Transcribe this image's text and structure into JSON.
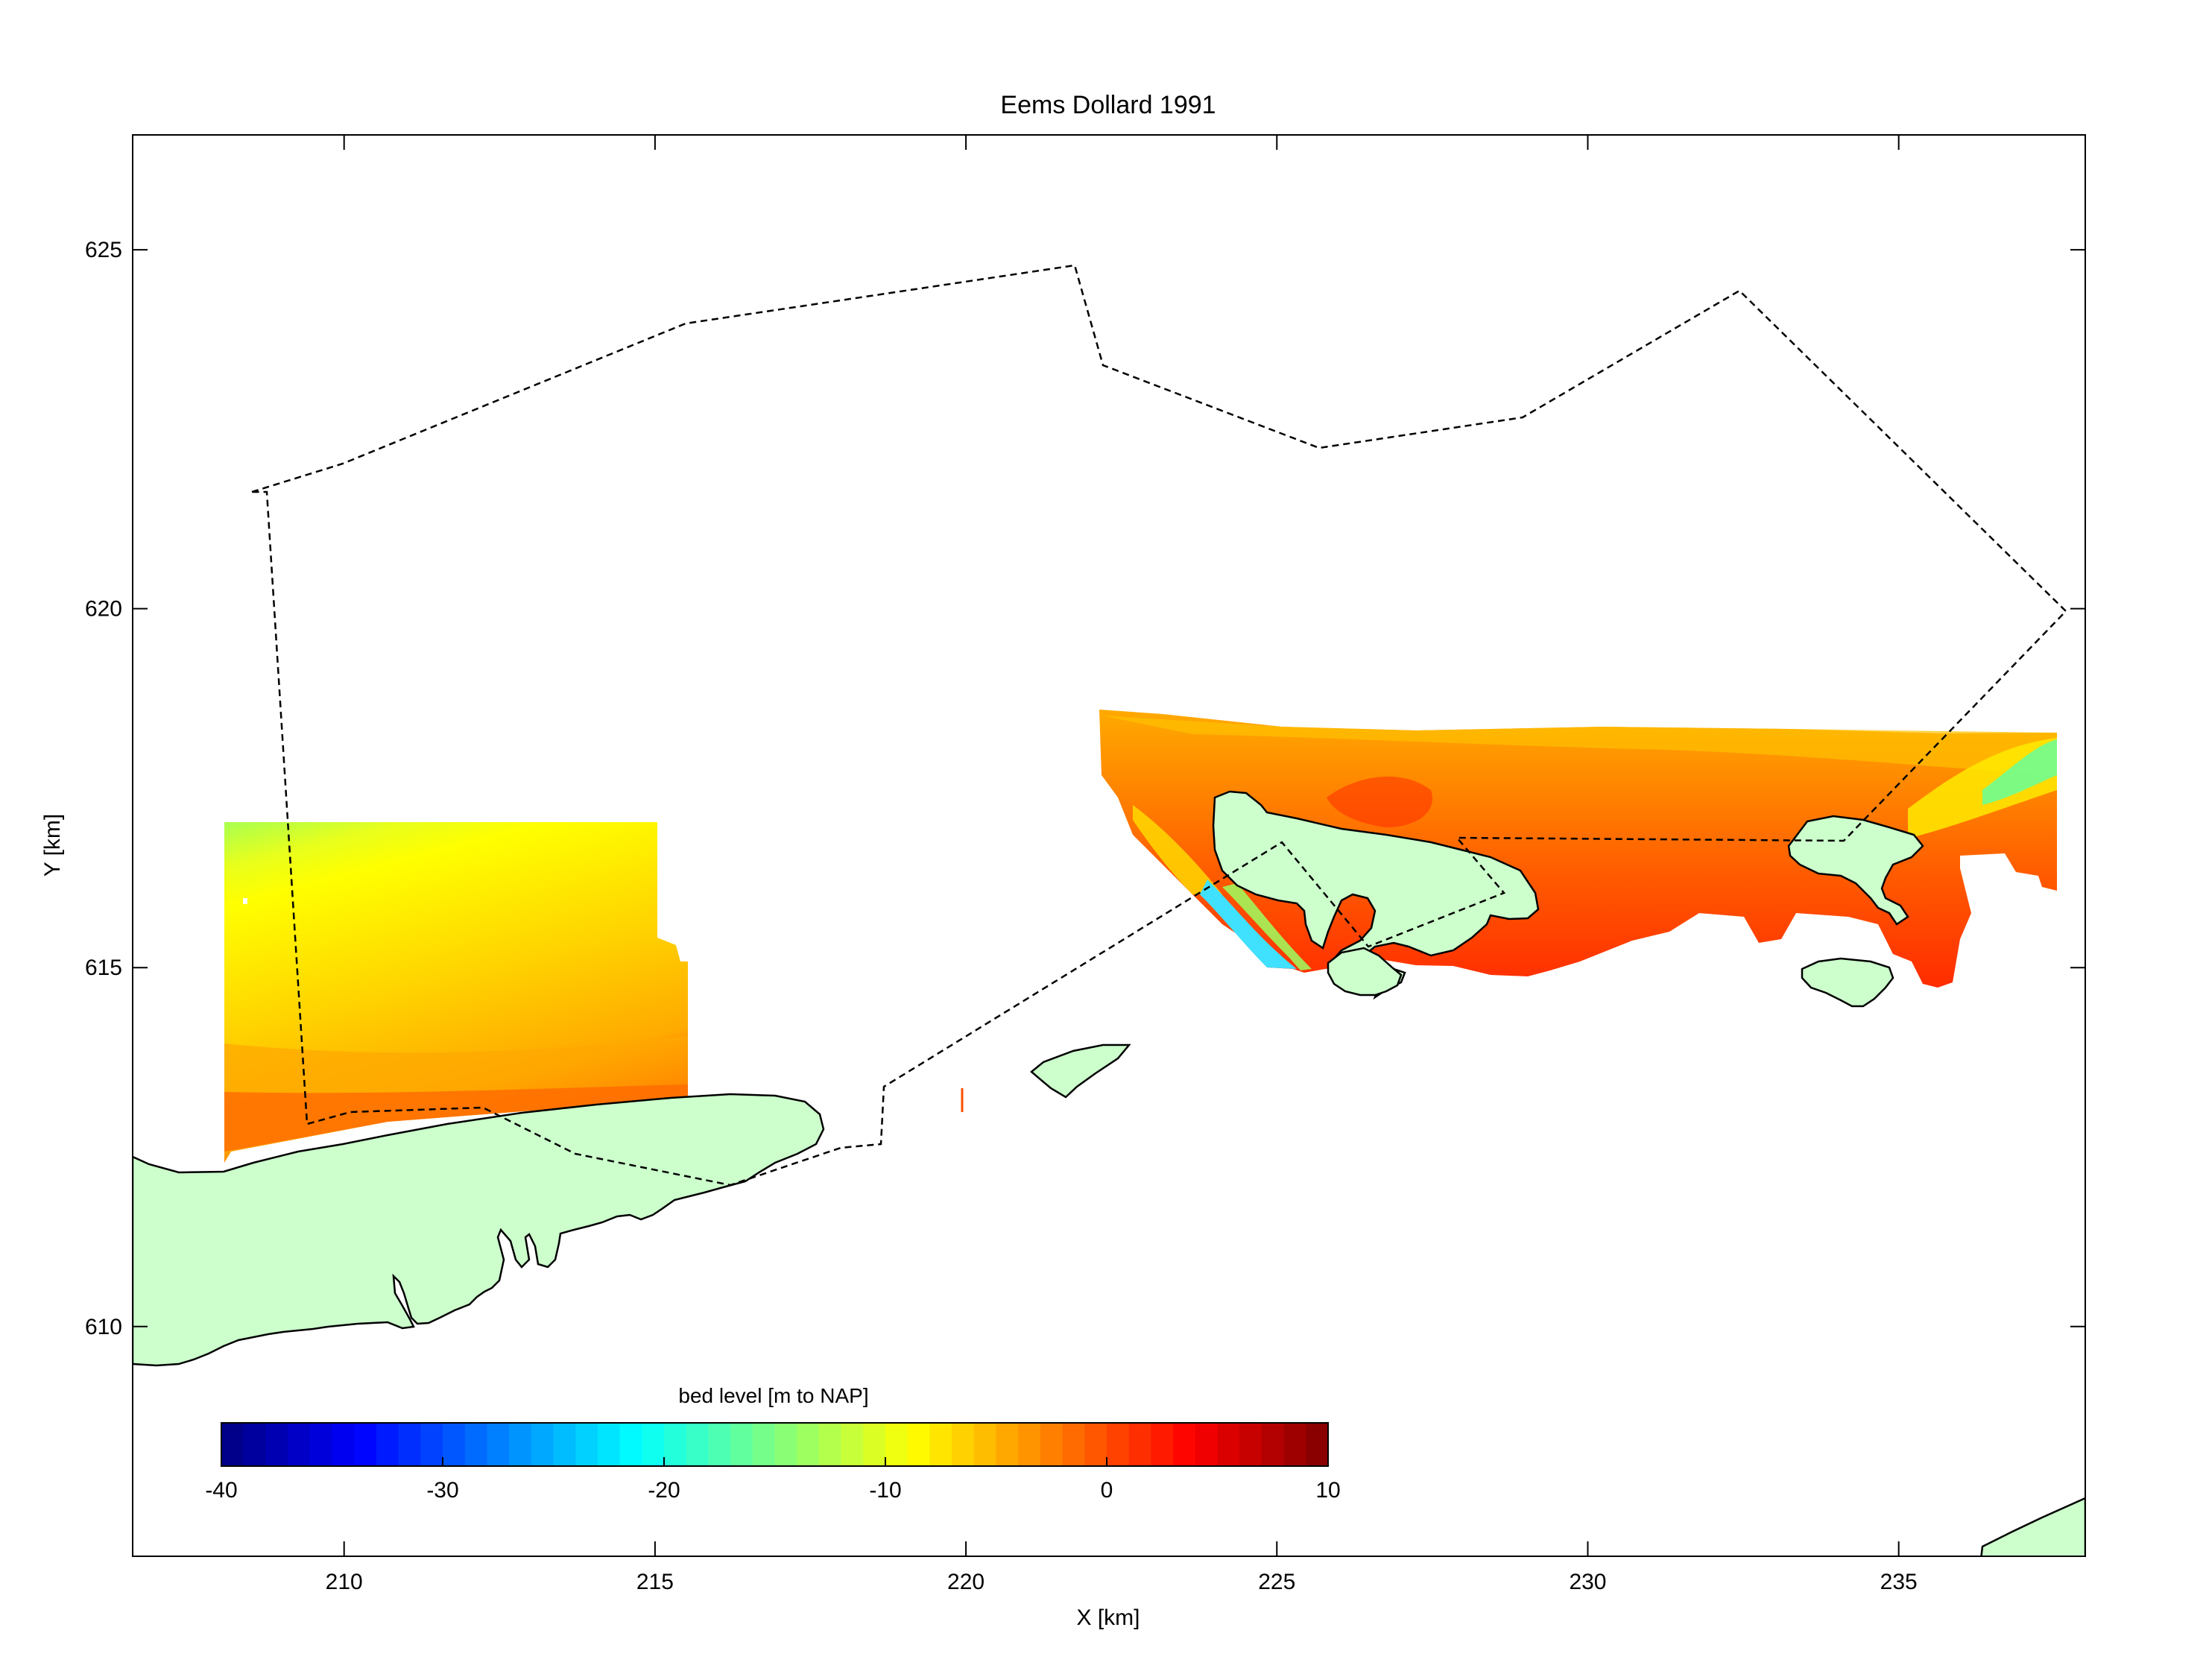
{
  "chart_data": {
    "type": "heatmap",
    "title": "Eems Dollard 1991",
    "xlabel": "X [km]",
    "ylabel": "Y [km]",
    "xlim": [
      206.6,
      238.0
    ],
    "ylim": [
      606.8,
      626.6
    ],
    "xticks": [
      "210",
      "215",
      "220",
      "225",
      "230",
      "235"
    ],
    "yticks": [
      "610",
      "615",
      "620",
      "625"
    ],
    "colorbar": {
      "label": "bed level [m to NAP]",
      "min": -40,
      "max": 10,
      "ticks": [
        "-40",
        "-30",
        "-20",
        "-10",
        "0",
        "10"
      ],
      "colormap": "jet",
      "levels": 50
    },
    "land_color": "#ccffcc",
    "boundary_style": "dashed"
  }
}
